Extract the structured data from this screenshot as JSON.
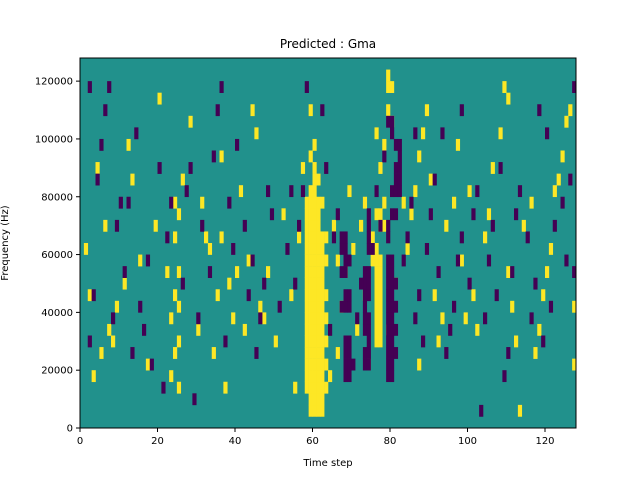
{
  "chart_data": {
    "type": "heatmap",
    "title": "Predicted : Gma",
    "xlabel": "Time step",
    "ylabel": "Frequency (Hz)",
    "xlim": [
      0,
      128
    ],
    "ylim": [
      0,
      128000
    ],
    "x_ticks": [
      0,
      20,
      40,
      60,
      80,
      100,
      120
    ],
    "y_ticks": [
      0,
      20000,
      40000,
      60000,
      80000,
      100000,
      120000
    ],
    "grid": false,
    "colorbar": false,
    "colors": {
      "background": "#21918c",
      "high": "#fde725",
      "low": "#440154"
    },
    "rows": 32,
    "row_height_hz": 4000,
    "cells_high": [
      [
        59,
        1
      ],
      [
        60,
        1
      ],
      [
        61,
        1
      ],
      [
        62,
        1
      ],
      [
        59,
        2
      ],
      [
        60,
        2
      ],
      [
        61,
        2
      ],
      [
        62,
        2
      ],
      [
        58,
        3
      ],
      [
        59,
        3
      ],
      [
        60,
        3
      ],
      [
        61,
        3
      ],
      [
        62,
        3
      ],
      [
        63,
        3
      ],
      [
        58,
        4
      ],
      [
        59,
        4
      ],
      [
        60,
        4
      ],
      [
        61,
        4
      ],
      [
        62,
        4
      ],
      [
        58,
        5
      ],
      [
        59,
        5
      ],
      [
        60,
        5
      ],
      [
        61,
        5
      ],
      [
        62,
        5
      ],
      [
        63,
        5
      ],
      [
        58,
        6
      ],
      [
        59,
        6
      ],
      [
        60,
        6
      ],
      [
        61,
        6
      ],
      [
        62,
        6
      ],
      [
        58,
        7
      ],
      [
        59,
        7
      ],
      [
        60,
        7
      ],
      [
        61,
        7
      ],
      [
        62,
        7
      ],
      [
        63,
        7
      ],
      [
        58,
        8
      ],
      [
        59,
        8
      ],
      [
        60,
        8
      ],
      [
        61,
        8
      ],
      [
        62,
        8
      ],
      [
        58,
        9
      ],
      [
        59,
        9
      ],
      [
        60,
        9
      ],
      [
        61,
        9
      ],
      [
        62,
        9
      ],
      [
        63,
        9
      ],
      [
        58,
        10
      ],
      [
        59,
        10
      ],
      [
        60,
        10
      ],
      [
        61,
        10
      ],
      [
        62,
        10
      ],
      [
        58,
        11
      ],
      [
        59,
        11
      ],
      [
        60,
        11
      ],
      [
        61,
        11
      ],
      [
        62,
        11
      ],
      [
        63,
        11
      ],
      [
        58,
        12
      ],
      [
        59,
        12
      ],
      [
        60,
        12
      ],
      [
        61,
        12
      ],
      [
        62,
        12
      ],
      [
        58,
        13
      ],
      [
        59,
        13
      ],
      [
        60,
        13
      ],
      [
        61,
        13
      ],
      [
        62,
        13
      ],
      [
        58,
        14
      ],
      [
        59,
        14
      ],
      [
        60,
        14
      ],
      [
        61,
        14
      ],
      [
        62,
        14
      ],
      [
        63,
        14
      ],
      [
        58,
        15
      ],
      [
        59,
        15
      ],
      [
        60,
        15
      ],
      [
        61,
        15
      ],
      [
        62,
        15
      ],
      [
        58,
        16
      ],
      [
        59,
        16
      ],
      [
        60,
        16
      ],
      [
        61,
        16
      ],
      [
        62,
        16
      ],
      [
        63,
        16
      ],
      [
        58,
        17
      ],
      [
        59,
        17
      ],
      [
        60,
        17
      ],
      [
        61,
        17
      ],
      [
        58,
        18
      ],
      [
        59,
        18
      ],
      [
        60,
        18
      ],
      [
        61,
        18
      ],
      [
        58,
        19
      ],
      [
        59,
        19
      ],
      [
        60,
        19
      ],
      [
        61,
        19
      ],
      [
        62,
        19
      ],
      [
        59,
        20
      ],
      [
        60,
        20
      ],
      [
        60,
        21
      ],
      [
        61,
        21
      ],
      [
        60,
        22
      ],
      [
        59,
        23
      ],
      [
        60,
        24
      ],
      [
        59,
        27
      ],
      [
        76,
        7
      ],
      [
        77,
        7
      ],
      [
        76,
        8
      ],
      [
        77,
        8
      ],
      [
        76,
        9
      ],
      [
        77,
        9
      ],
      [
        76,
        10
      ],
      [
        77,
        10
      ],
      [
        76,
        11
      ],
      [
        77,
        11
      ],
      [
        76,
        12
      ],
      [
        77,
        12
      ],
      [
        76,
        13
      ],
      [
        77,
        13
      ],
      [
        75,
        14
      ],
      [
        76,
        14
      ],
      [
        77,
        14
      ],
      [
        76,
        15
      ],
      [
        75,
        16
      ],
      [
        77,
        17
      ],
      [
        78,
        17
      ],
      [
        76,
        18
      ],
      [
        77,
        18
      ],
      [
        78,
        19
      ],
      [
        77,
        22
      ],
      [
        78,
        24
      ],
      [
        76,
        25
      ],
      [
        80,
        26
      ],
      [
        79,
        27
      ],
      [
        79,
        29
      ],
      [
        80,
        29
      ],
      [
        79,
        30
      ],
      [
        3,
        4
      ],
      [
        5,
        6
      ],
      [
        7,
        8
      ],
      [
        9,
        10
      ],
      [
        11,
        12
      ],
      [
        15,
        14
      ],
      [
        17,
        5
      ],
      [
        20,
        28
      ],
      [
        22,
        13
      ],
      [
        23,
        4
      ],
      [
        23,
        9
      ],
      [
        24,
        6
      ],
      [
        24,
        11
      ],
      [
        24,
        16
      ],
      [
        24,
        19
      ],
      [
        25,
        3
      ],
      [
        25,
        7
      ],
      [
        25,
        10
      ],
      [
        25,
        13
      ],
      [
        25,
        18
      ],
      [
        26,
        21
      ],
      [
        30,
        8
      ],
      [
        31,
        19
      ],
      [
        32,
        16
      ],
      [
        33,
        15
      ],
      [
        34,
        6
      ],
      [
        35,
        11
      ],
      [
        36,
        16
      ],
      [
        37,
        3
      ],
      [
        38,
        12
      ],
      [
        39,
        9
      ],
      [
        40,
        13
      ],
      [
        41,
        20
      ],
      [
        42,
        8
      ],
      [
        43,
        14
      ],
      [
        45,
        25
      ],
      [
        46,
        10
      ],
      [
        48,
        13
      ],
      [
        50,
        7
      ],
      [
        52,
        18
      ],
      [
        54,
        11
      ],
      [
        55,
        3
      ],
      [
        56,
        16
      ],
      [
        57,
        22
      ],
      [
        64,
        4
      ],
      [
        66,
        6
      ],
      [
        67,
        10
      ],
      [
        68,
        13
      ],
      [
        70,
        15
      ],
      [
        72,
        17
      ],
      [
        73,
        19
      ],
      [
        74,
        5
      ],
      [
        79,
        8
      ],
      [
        81,
        12
      ],
      [
        84,
        15
      ],
      [
        85,
        18
      ],
      [
        86,
        20
      ],
      [
        87,
        23
      ],
      [
        88,
        25
      ],
      [
        89,
        27
      ],
      [
        90,
        21
      ],
      [
        92,
        7
      ],
      [
        93,
        9
      ],
      [
        94,
        17
      ],
      [
        96,
        19
      ],
      [
        97,
        24
      ],
      [
        98,
        14
      ],
      [
        100,
        20
      ],
      [
        101,
        11
      ],
      [
        102,
        8
      ],
      [
        104,
        16
      ],
      [
        105,
        18
      ],
      [
        106,
        22
      ],
      [
        108,
        25
      ],
      [
        110,
        13
      ],
      [
        111,
        10
      ],
      [
        112,
        7
      ],
      [
        113,
        1
      ],
      [
        114,
        17
      ],
      [
        116,
        19
      ],
      [
        117,
        6
      ],
      [
        118,
        8
      ],
      [
        119,
        11
      ],
      [
        120,
        13
      ],
      [
        121,
        15
      ],
      [
        122,
        20
      ],
      [
        123,
        21
      ],
      [
        124,
        23
      ],
      [
        125,
        26
      ],
      [
        126,
        27
      ],
      [
        127,
        5
      ],
      [
        127,
        10
      ],
      [
        110,
        28
      ],
      [
        109,
        29
      ],
      [
        99,
        9
      ],
      [
        91,
        11
      ],
      [
        87,
        5
      ],
      [
        83,
        19
      ],
      [
        66,
        14
      ],
      [
        65,
        17
      ],
      [
        69,
        20
      ],
      [
        71,
        8
      ],
      [
        73,
        11
      ],
      [
        47,
        9
      ],
      [
        44,
        27
      ],
      [
        36,
        23
      ],
      [
        28,
        26
      ],
      [
        19,
        17
      ],
      [
        13,
        21
      ],
      [
        12,
        24
      ],
      [
        8,
        7
      ],
      [
        6,
        17
      ],
      [
        4,
        22
      ],
      [
        2,
        11
      ],
      [
        1,
        15
      ]
    ],
    "cells_low": [
      [
        68,
        4
      ],
      [
        69,
        4
      ],
      [
        68,
        5
      ],
      [
        69,
        5
      ],
      [
        68,
        6
      ],
      [
        69,
        6
      ],
      [
        68,
        7
      ],
      [
        69,
        7
      ],
      [
        67,
        10
      ],
      [
        68,
        10
      ],
      [
        69,
        10
      ],
      [
        68,
        11
      ],
      [
        69,
        11
      ],
      [
        67,
        13
      ],
      [
        68,
        13
      ],
      [
        68,
        14
      ],
      [
        69,
        14
      ],
      [
        67,
        15
      ],
      [
        68,
        15
      ],
      [
        67,
        16
      ],
      [
        68,
        16
      ],
      [
        73,
        5
      ],
      [
        74,
        5
      ],
      [
        73,
        6
      ],
      [
        74,
        6
      ],
      [
        74,
        7
      ],
      [
        73,
        8
      ],
      [
        74,
        8
      ],
      [
        73,
        9
      ],
      [
        74,
        9
      ],
      [
        73,
        10
      ],
      [
        73,
        11
      ],
      [
        74,
        11
      ],
      [
        73,
        12
      ],
      [
        74,
        12
      ],
      [
        73,
        13
      ],
      [
        74,
        13
      ],
      [
        74,
        15
      ],
      [
        74,
        16
      ],
      [
        74,
        17
      ],
      [
        74,
        18
      ],
      [
        79,
        4
      ],
      [
        80,
        4
      ],
      [
        79,
        5
      ],
      [
        80,
        5
      ],
      [
        79,
        6
      ],
      [
        80,
        6
      ],
      [
        79,
        7
      ],
      [
        80,
        7
      ],
      [
        79,
        8
      ],
      [
        80,
        8
      ],
      [
        79,
        9
      ],
      [
        80,
        9
      ],
      [
        79,
        10
      ],
      [
        80,
        10
      ],
      [
        79,
        11
      ],
      [
        80,
        11
      ],
      [
        79,
        12
      ],
      [
        80,
        12
      ],
      [
        79,
        13
      ],
      [
        80,
        13
      ],
      [
        81,
        6
      ],
      [
        81,
        8
      ],
      [
        81,
        10
      ],
      [
        81,
        12
      ],
      [
        79,
        14
      ],
      [
        80,
        14
      ],
      [
        79,
        16
      ],
      [
        79,
        17
      ],
      [
        80,
        18
      ],
      [
        81,
        18
      ],
      [
        80,
        20
      ],
      [
        81,
        20
      ],
      [
        82,
        20
      ],
      [
        81,
        21
      ],
      [
        82,
        21
      ],
      [
        81,
        22
      ],
      [
        82,
        22
      ],
      [
        82,
        23
      ],
      [
        81,
        24
      ],
      [
        82,
        24
      ],
      [
        80,
        25
      ],
      [
        79,
        26
      ],
      [
        80,
        26
      ],
      [
        2,
        7
      ],
      [
        3,
        11
      ],
      [
        4,
        21
      ],
      [
        5,
        24
      ],
      [
        6,
        27
      ],
      [
        7,
        29
      ],
      [
        8,
        9
      ],
      [
        9,
        17
      ],
      [
        10,
        19
      ],
      [
        11,
        13
      ],
      [
        13,
        6
      ],
      [
        14,
        25
      ],
      [
        15,
        10
      ],
      [
        16,
        8
      ],
      [
        17,
        14
      ],
      [
        18,
        5
      ],
      [
        20,
        22
      ],
      [
        21,
        3
      ],
      [
        22,
        16
      ],
      [
        23,
        19
      ],
      [
        26,
        12
      ],
      [
        27,
        20
      ],
      [
        28,
        22
      ],
      [
        29,
        2
      ],
      [
        30,
        9
      ],
      [
        31,
        17
      ],
      [
        33,
        13
      ],
      [
        34,
        23
      ],
      [
        35,
        27
      ],
      [
        37,
        7
      ],
      [
        38,
        19
      ],
      [
        39,
        15
      ],
      [
        40,
        24
      ],
      [
        42,
        17
      ],
      [
        43,
        11
      ],
      [
        44,
        14
      ],
      [
        45,
        6
      ],
      [
        46,
        9
      ],
      [
        47,
        12
      ],
      [
        48,
        20
      ],
      [
        49,
        18
      ],
      [
        51,
        10
      ],
      [
        53,
        15
      ],
      [
        55,
        12
      ],
      [
        56,
        17
      ],
      [
        57,
        20
      ],
      [
        63,
        22
      ],
      [
        64,
        8
      ],
      [
        65,
        16
      ],
      [
        66,
        18
      ],
      [
        70,
        5
      ],
      [
        71,
        9
      ],
      [
        72,
        12
      ],
      [
        75,
        15
      ],
      [
        76,
        20
      ],
      [
        77,
        17
      ],
      [
        78,
        23
      ],
      [
        83,
        14
      ],
      [
        84,
        16
      ],
      [
        85,
        19
      ],
      [
        86,
        9
      ],
      [
        87,
        11
      ],
      [
        88,
        7
      ],
      [
        89,
        15
      ],
      [
        90,
        18
      ],
      [
        91,
        21
      ],
      [
        92,
        13
      ],
      [
        93,
        25
      ],
      [
        94,
        6
      ],
      [
        95,
        8
      ],
      [
        96,
        10
      ],
      [
        97,
        14
      ],
      [
        98,
        16
      ],
      [
        100,
        12
      ],
      [
        101,
        18
      ],
      [
        102,
        20
      ],
      [
        103,
        1
      ],
      [
        104,
        9
      ],
      [
        105,
        14
      ],
      [
        106,
        17
      ],
      [
        107,
        11
      ],
      [
        108,
        22
      ],
      [
        109,
        4
      ],
      [
        110,
        6
      ],
      [
        111,
        13
      ],
      [
        112,
        18
      ],
      [
        113,
        20
      ],
      [
        115,
        16
      ],
      [
        116,
        9
      ],
      [
        117,
        12
      ],
      [
        118,
        27
      ],
      [
        119,
        7
      ],
      [
        120,
        25
      ],
      [
        121,
        10
      ],
      [
        122,
        17
      ],
      [
        124,
        19
      ],
      [
        125,
        14
      ],
      [
        126,
        21
      ],
      [
        127,
        13
      ],
      [
        127,
        29
      ],
      [
        2,
        29
      ],
      [
        12,
        19
      ],
      [
        54,
        20
      ],
      [
        62,
        27
      ],
      [
        58,
        29
      ],
      [
        36,
        29
      ],
      [
        86,
        25
      ],
      [
        98,
        27
      ]
    ]
  }
}
